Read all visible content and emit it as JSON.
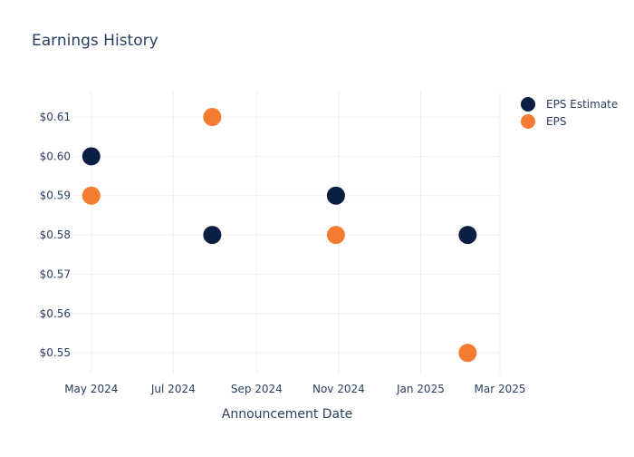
{
  "chart_data": {
    "type": "scatter",
    "title": "Earnings History",
    "xlabel": "Announcement Date",
    "ylabel": "",
    "x_ticks": [
      "2024-05-01",
      "2024-07-01",
      "2024-09-01",
      "2024-11-01",
      "2025-01-01",
      "2025-03-01"
    ],
    "x_tick_labels": [
      "May 2024",
      "Jul 2024",
      "Sep 2024",
      "Nov 2024",
      "Jan 2025",
      "Mar 2025"
    ],
    "x_range": [
      "2024-04-17",
      "2025-03-01"
    ],
    "y_ticks": [
      0.55,
      0.56,
      0.57,
      0.58,
      0.59,
      0.6,
      0.61
    ],
    "y_tick_labels": [
      "$0.55",
      "$0.56",
      "$0.57",
      "$0.58",
      "$0.59",
      "$0.60",
      "$0.61"
    ],
    "ylim": [
      0.5445,
      0.6167
    ],
    "grid": true,
    "legend_position": "top-right",
    "series": [
      {
        "name": "EPS Estimate",
        "color": "#0b1f45",
        "points": [
          {
            "x": "2024-05-01",
            "y": 0.6
          },
          {
            "x": "2024-07-30",
            "y": 0.58
          },
          {
            "x": "2024-10-30",
            "y": 0.59
          },
          {
            "x": "2025-02-05",
            "y": 0.58
          }
        ]
      },
      {
        "name": "EPS",
        "color": "#f47c30",
        "points": [
          {
            "x": "2024-05-01",
            "y": 0.59
          },
          {
            "x": "2024-07-30",
            "y": 0.61
          },
          {
            "x": "2024-10-30",
            "y": 0.58
          },
          {
            "x": "2025-02-05",
            "y": 0.55
          }
        ]
      }
    ]
  }
}
